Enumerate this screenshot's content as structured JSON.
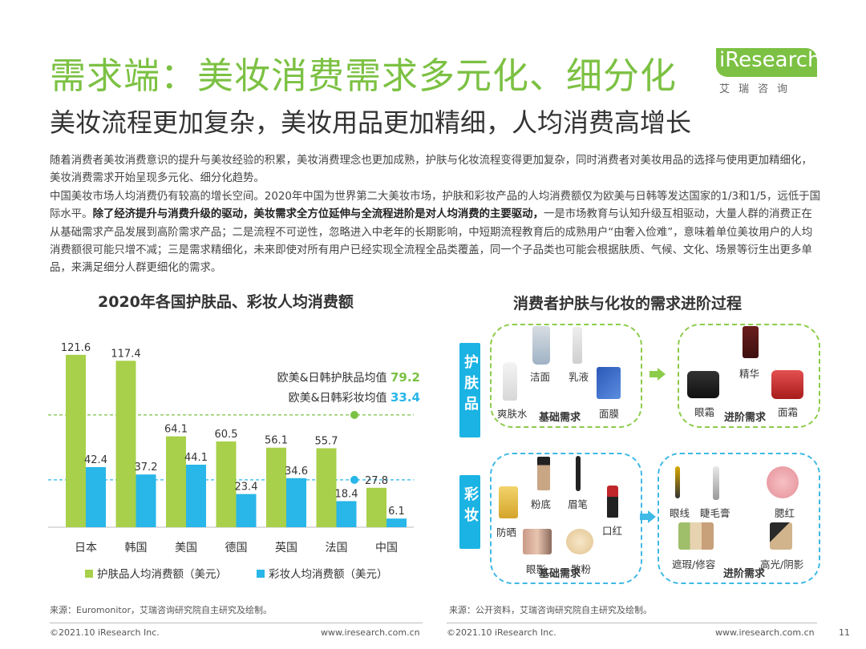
{
  "header": {
    "title": "需求端：美妆消费需求多元化、细分化",
    "subtitle": "美妆流程更加复杂，美妆用品更加精细，人均消费高增长",
    "logo_brand": "iResearch",
    "logo_sub": "艾瑞咨询"
  },
  "body": {
    "p1": "随着消费者美妆消费意识的提升与美妆经验的积累，美妆消费理念也更加成熟，护肤与化妆流程变得更加复杂，同时消费者对美妆用品的选择与使用更加精细化，美妆消费需求开始呈现多元化、细分化趋势。",
    "p2a": "中国美妆市场人均消费仍有较高的增长空间。2020年中国为世界第二大美妆市场，护肤和彩妆产品的人均消费额仅为欧美与日韩等发达国家的1/3和1/5，远低于国际水平。",
    "p2b": "除了经济提升与消费升级的驱动，美妆需求全方位延伸与全流程进阶是对人均消费的主要驱动，",
    "p2c": "一是市场教育与认知升级互相驱动，大量人群的消费正在从基础需求产品发展到高阶需求产品；二是流程不可逆性，忽略进入中老年的长期影响，中短期流程教育后的成熟用户“由奢入俭难”，意味着单位美妆用户的人均消费额很可能只增不减；三是需求精细化，未来即使对所有用户已经实现全流程全品类覆盖，同一个子品类也可能会根据肤质、气候、文化、场景等衍生出更多单品，来满足细分人群更细化的需求。"
  },
  "chart_title": "2020年各国护肤品、彩妆人均消费额",
  "chart_data": {
    "type": "bar",
    "title": "2020年各国护肤品、彩妆人均消费额",
    "categories": [
      "日本",
      "韩国",
      "美国",
      "德国",
      "英国",
      "法国",
      "中国"
    ],
    "series": [
      {
        "name": "护肤品人均消费额（美元）",
        "color": "#a8d04a",
        "values": [
          121.6,
          117.4,
          64.1,
          60.5,
          56.1,
          55.7,
          27.8
        ]
      },
      {
        "name": "彩妆人均消费额（美元）",
        "color": "#29b6e8",
        "values": [
          42.4,
          37.2,
          44.1,
          23.4,
          34.6,
          18.4,
          6.1
        ]
      }
    ],
    "reference_lines": [
      {
        "label": "欧美&日韩护肤品均值",
        "value": 79.2,
        "color": "#7cc143"
      },
      {
        "label": "欧美&日韩彩妆均值",
        "value": 33.4,
        "color": "#29b6e8"
      }
    ],
    "ylim": [
      0,
      130
    ],
    "grid": false,
    "legend": "bottom"
  },
  "process": {
    "title": "消费者护肤与化妆的需求进阶过程",
    "skincare": {
      "tab": "护肤品",
      "basic_label": "基础需求",
      "advanced_label": "进阶需求",
      "basic_items": [
        "洁面",
        "乳液",
        "爽肤水",
        "面膜"
      ],
      "advanced_items": [
        "精华",
        "眼霜",
        "面霜"
      ]
    },
    "makeup": {
      "tab": "彩妆",
      "basic_label": "基础需求",
      "advanced_label": "进阶需求",
      "basic_items": [
        "粉底",
        "眉笔",
        "防晒",
        "口红",
        "眼影",
        "散粉"
      ],
      "advanced_items": [
        "眼线",
        "睫毛膏",
        "腮红",
        "遮瑕/修容",
        "高光/阴影"
      ]
    }
  },
  "sources": {
    "left": "来源：Euromonitor，艾瑞咨询研究院自主研究及绘制。",
    "right": "来源：公开资料，艾瑞咨询研究院自主研究及绘制。"
  },
  "footer": {
    "copyright_left": "©2021.10 iResearch Inc.",
    "url_left": "www.iresearch.com.cn",
    "copyright_right": "©2021.10 iResearch Inc.",
    "url_right": "www.iresearch.com.cn",
    "page_number": "11"
  }
}
